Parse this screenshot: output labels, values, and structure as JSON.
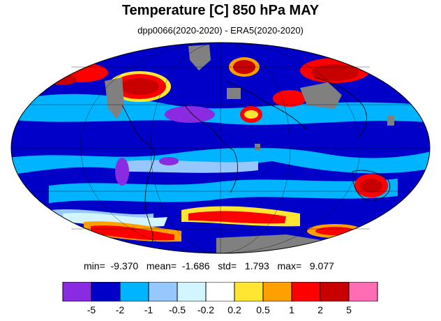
{
  "title": "Temperature [C] 850 hPa MAY",
  "subtitle": "dpp0066(2020-2020) - ERA5(2020-2020)",
  "stats": {
    "min_label": "min=",
    "min_value": "-9.370",
    "mean_label": "mean=",
    "mean_value": "-1.686",
    "std_label": "std=",
    "std_value": "1.793",
    "max_label": "max=",
    "max_value": "9.077"
  },
  "colorbar": {
    "colors": [
      "#8a2be2",
      "#0000c8",
      "#00b4ff",
      "#96c8ff",
      "#d2f5ff",
      "#ffffff",
      "#ffe632",
      "#ffa000",
      "#ff0000",
      "#c80000",
      "#ff6eb4"
    ],
    "labels": [
      "-5",
      "-2",
      "-1",
      "-0.5",
      "-0.2",
      "0.2",
      "0.5",
      "1",
      "2",
      "5"
    ]
  },
  "palette": {
    "deep_blue": "#0000c8",
    "mid_blue": "#00b4ff",
    "light_blue": "#96c8ff",
    "pale_blue": "#d2f5ff",
    "white": "#ffffff",
    "purple": "#8a2be2",
    "yellow": "#ffe632",
    "orange": "#ffa000",
    "red": "#ff0000",
    "dark_red": "#c80000",
    "missing_gray": "#808080"
  }
}
